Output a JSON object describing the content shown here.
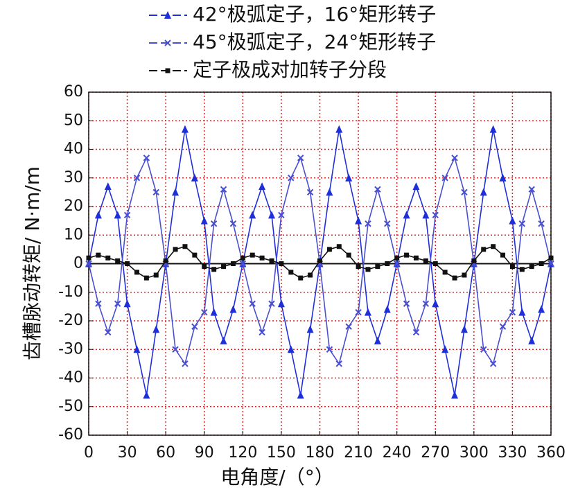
{
  "chart_data": {
    "type": "line",
    "xlabel": "电角度/（°）",
    "ylabel": "齿槽脉动转矩/ N·m/m",
    "x": [
      0,
      7.5,
      15,
      22.5,
      30,
      37.5,
      45,
      52.5,
      60,
      67.5,
      75,
      82.5,
      90,
      97.5,
      105,
      112.5,
      120,
      127.5,
      135,
      142.5,
      150,
      157.5,
      165,
      172.5,
      180,
      187.5,
      195,
      202.5,
      210,
      217.5,
      225,
      232.5,
      240,
      247.5,
      255,
      262.5,
      270,
      277.5,
      285,
      292.5,
      300,
      307.5,
      315,
      322.5,
      330,
      337.5,
      345,
      352.5,
      360
    ],
    "series": [
      {
        "name": "42°极弧定子，16°矩形转子",
        "color": "#1f2fd8",
        "marker": "triangle",
        "values": [
          0,
          17,
          27,
          17,
          -14,
          -30,
          -46,
          -23,
          0,
          25,
          47,
          30,
          15,
          -17,
          -27,
          -16,
          0,
          17,
          27,
          17,
          -14,
          -30,
          -46,
          -23,
          0,
          25,
          47,
          30,
          15,
          -17,
          -27,
          -16,
          0,
          17,
          27,
          17,
          -14,
          -30,
          -46,
          -23,
          0,
          25,
          47,
          30,
          15,
          -17,
          -27,
          -16,
          0
        ]
      },
      {
        "name": "45°极弧定子，24°矩形转子",
        "color": "#4a4fd0",
        "marker": "x",
        "values": [
          0,
          -14,
          -24,
          -14,
          17,
          30,
          37,
          25,
          0,
          -30,
          -35,
          -22,
          -17,
          14,
          26,
          14,
          0,
          -14,
          -24,
          -14,
          17,
          30,
          37,
          25,
          0,
          -30,
          -35,
          -22,
          -17,
          14,
          26,
          14,
          0,
          -14,
          -24,
          -14,
          17,
          30,
          37,
          25,
          0,
          -30,
          -35,
          -22,
          -17,
          14,
          26,
          14,
          0
        ]
      },
      {
        "name": "定子极成对加转子分段",
        "color": "#111111",
        "marker": "square",
        "values": [
          2,
          3,
          2,
          1,
          0,
          -3,
          -5,
          -4,
          1,
          5,
          6,
          3,
          -1,
          -2,
          -1,
          0,
          2,
          3,
          2,
          1,
          0,
          -3,
          -5,
          -4,
          1,
          5,
          6,
          3,
          -1,
          -2,
          -1,
          0,
          2,
          3,
          2,
          1,
          0,
          -3,
          -5,
          -4,
          1,
          5,
          6,
          3,
          -1,
          -2,
          -1,
          0,
          2
        ]
      }
    ],
    "xlim": [
      0,
      360
    ],
    "xticks": [
      0,
      30,
      60,
      90,
      120,
      150,
      180,
      210,
      240,
      270,
      300,
      330,
      360
    ],
    "ylim": [
      -60,
      60
    ],
    "yticks": [
      -60,
      -50,
      -40,
      -30,
      -20,
      -10,
      0,
      10,
      20,
      30,
      40,
      50,
      60
    ],
    "grid": true,
    "grid_color": "#e02020",
    "legend": "top"
  }
}
